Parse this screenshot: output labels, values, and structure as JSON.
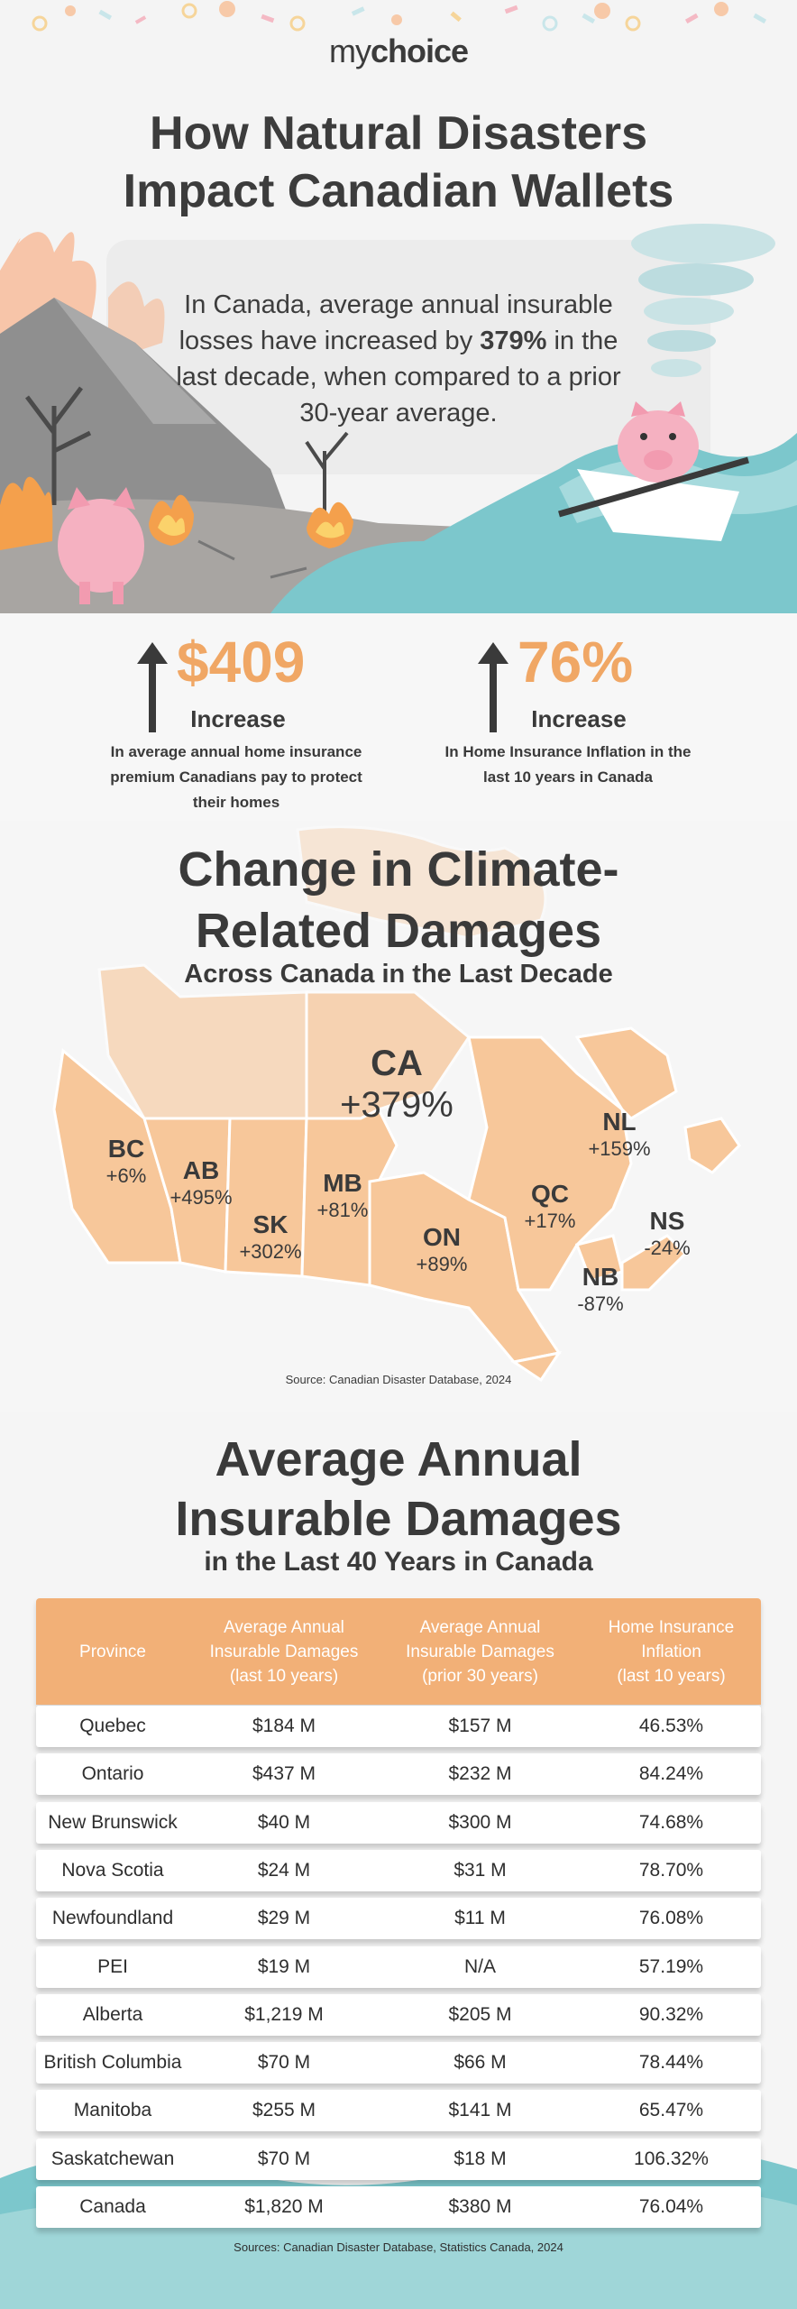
{
  "brand": {
    "logo_light": "my",
    "logo_bold": "choice"
  },
  "hero": {
    "title_line1": "How Natural Disasters",
    "title_line2": "Impact Canadian Wallets",
    "text_line1": "In Canada, average annual insurable",
    "text_line2_pre": "losses have increased by ",
    "text_line2_bold": "379%",
    "text_line2_post": " in the",
    "text_line3": "last decade, when compared to a prior",
    "text_line4": "30-year average."
  },
  "stats": [
    {
      "value": "$409",
      "label": "Increase",
      "description": "In average annual home insurance premium Canadians pay to protect their homes"
    },
    {
      "value": "76%",
      "label": "Increase",
      "description": "In Home Insurance Inflation in the last 10 years in Canada"
    }
  ],
  "map": {
    "title_line1": "Change in Climate-",
    "title_line2": "Related Damages",
    "subtitle": "Across Canada in the Last Decade",
    "provinces": [
      {
        "code": "CA",
        "change": "+379%"
      },
      {
        "code": "BC",
        "change": "+6%"
      },
      {
        "code": "AB",
        "change": "+495%"
      },
      {
        "code": "SK",
        "change": "+302%"
      },
      {
        "code": "MB",
        "change": "+81%"
      },
      {
        "code": "ON",
        "change": "+89%"
      },
      {
        "code": "QC",
        "change": "+17%"
      },
      {
        "code": "NL",
        "change": "+159%"
      },
      {
        "code": "NS",
        "change": "-24%"
      },
      {
        "code": "NB",
        "change": "-87%"
      }
    ],
    "source": "Source: Canadian Disaster Database, 2024"
  },
  "table": {
    "title_line1": "Average Annual",
    "title_line2": "Insurable Damages",
    "subtitle": "in the Last 40 Years in Canada",
    "headers": [
      "Province",
      "Average Annual\nInsurable Damages\n(last 10 years)",
      "Average Annual\nInsurable Damages\n(prior 30 years)",
      "Home Insurance\nInflation\n(last 10 years)"
    ],
    "rows": [
      [
        "Quebec",
        "$184 M",
        "$157 M",
        "46.53%"
      ],
      [
        "Ontario",
        "$437 M",
        "$232 M",
        "84.24%"
      ],
      [
        "New Brunswick",
        "$40 M",
        "$300 M",
        "74.68%"
      ],
      [
        "Nova Scotia",
        "$24 M",
        "$31 M",
        "78.70%"
      ],
      [
        "Newfoundland",
        "$29 M",
        "$11 M",
        "76.08%"
      ],
      [
        "PEI",
        "$19 M",
        "N/A",
        "57.19%"
      ],
      [
        "Alberta",
        "$1,219 M",
        "$205 M",
        "90.32%"
      ],
      [
        "British Columbia",
        "$70 M",
        "$66 M",
        "78.44%"
      ],
      [
        "Manitoba",
        "$255 M",
        "$141 M",
        "65.47%"
      ],
      [
        "Saskatchewan",
        "$70 M",
        "$18 M",
        "106.32%"
      ],
      [
        "Canada",
        "$1,820 M",
        "$380 M",
        "76.04%"
      ]
    ],
    "source": "Sources: Canadian Disaster Database, Statistics Canada, 2024"
  },
  "colors": {
    "accent": "#f0a765",
    "header": "#f2b077",
    "teal": "#7cc7cc",
    "map_fill": "#f7c79a",
    "text": "#3a3a3a"
  }
}
